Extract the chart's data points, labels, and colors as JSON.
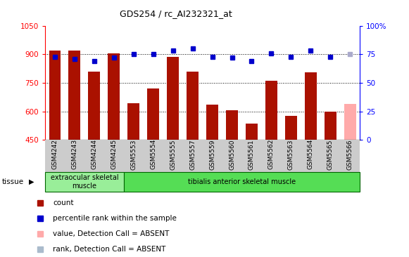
{
  "title": "GDS254 / rc_AI232321_at",
  "categories": [
    "GSM4242",
    "GSM4243",
    "GSM4244",
    "GSM4245",
    "GSM5553",
    "GSM5554",
    "GSM5555",
    "GSM5557",
    "GSM5559",
    "GSM5560",
    "GSM5561",
    "GSM5562",
    "GSM5563",
    "GSM5564",
    "GSM5565",
    "GSM5566"
  ],
  "bar_values": [
    920,
    920,
    810,
    905,
    645,
    720,
    885,
    810,
    635,
    605,
    535,
    760,
    578,
    805,
    600,
    640
  ],
  "bar_colors": [
    "#aa1100",
    "#aa1100",
    "#aa1100",
    "#aa1100",
    "#aa1100",
    "#aa1100",
    "#aa1100",
    "#aa1100",
    "#aa1100",
    "#aa1100",
    "#aa1100",
    "#aa1100",
    "#aa1100",
    "#aa1100",
    "#aa1100",
    "#ffaaaa"
  ],
  "dot_values": [
    73,
    71,
    69,
    72,
    75,
    75,
    78,
    80,
    73,
    72,
    69,
    76,
    73,
    78,
    73,
    75
  ],
  "dot_absent": [
    false,
    false,
    false,
    false,
    false,
    false,
    false,
    false,
    false,
    false,
    false,
    false,
    false,
    false,
    false,
    true
  ],
  "dot_color_normal": "#0000cc",
  "dot_color_absent": "#aaaacc",
  "ylim_left": [
    450,
    1050
  ],
  "ylim_right": [
    0,
    100
  ],
  "yticks_left": [
    450,
    600,
    750,
    900,
    1050
  ],
  "yticks_right": [
    0,
    25,
    50,
    75,
    100
  ],
  "grid_values": [
    600,
    750,
    900
  ],
  "tissue_groups": [
    {
      "label": "extraocular skeletal\nmuscle",
      "start": 0,
      "end": 4,
      "color": "#99ee99"
    },
    {
      "label": "tibialis anterior skeletal muscle",
      "start": 4,
      "end": 16,
      "color": "#55dd55"
    }
  ],
  "tissue_label": "tissue",
  "legend_items": [
    {
      "label": "count",
      "color": "#aa1100"
    },
    {
      "label": "percentile rank within the sample",
      "color": "#0000cc"
    },
    {
      "label": "value, Detection Call = ABSENT",
      "color": "#ffaaaa"
    },
    {
      "label": "rank, Detection Call = ABSENT",
      "color": "#aabbcc"
    }
  ],
  "bar_width": 0.6,
  "figsize": [
    5.81,
    3.66
  ],
  "dpi": 100
}
